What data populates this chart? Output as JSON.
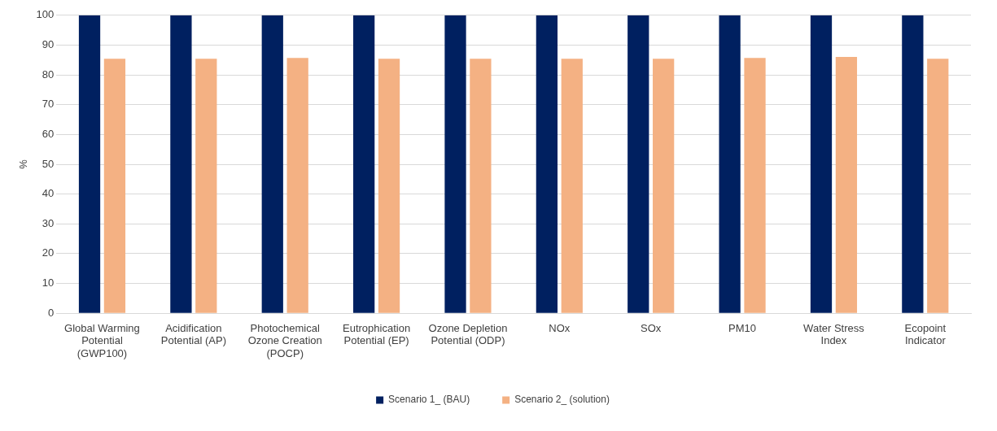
{
  "chart_data": {
    "type": "bar",
    "categories": [
      "Global Warming Potential (GWP100)",
      "Acidification Potential (AP)",
      "Photochemical Ozone Creation (POCP)",
      "Eutrophication Potential (EP)",
      "Ozone Depletion Potential (ODP)",
      "NOx",
      "SOx",
      "PM10",
      "Water Stress Index",
      "Ecopoint Indicator"
    ],
    "series": [
      {
        "name": "Scenario 1_ (BAU)",
        "color": "#002060",
        "values": [
          100,
          100,
          100,
          100,
          100,
          100,
          100,
          100,
          100,
          100
        ]
      },
      {
        "name": "Scenario 2_ (solution)",
        "color": "#f4b183",
        "values": [
          85.4,
          85.4,
          85.7,
          85.4,
          85.4,
          85.4,
          85.4,
          85.7,
          86,
          85.4
        ]
      }
    ],
    "ylabel": "%",
    "ylim": [
      0,
      100
    ],
    "yticks": [
      0,
      10,
      20,
      30,
      40,
      50,
      60,
      70,
      80,
      90,
      100
    ],
    "grid": "y",
    "legend": "bottom"
  }
}
